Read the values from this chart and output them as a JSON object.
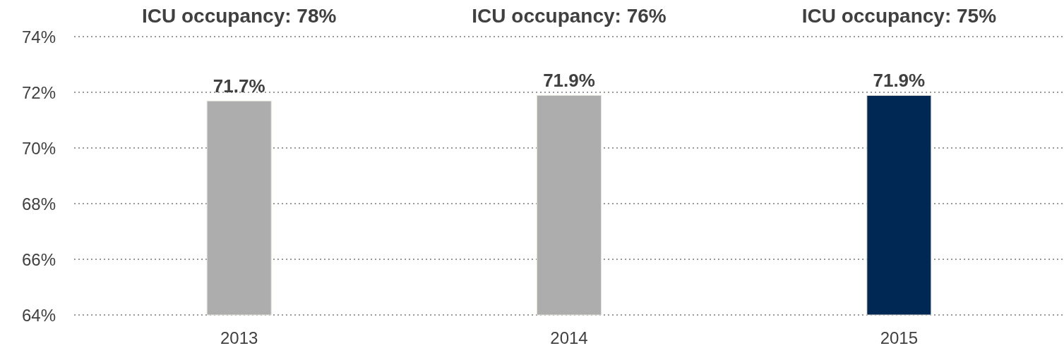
{
  "chart_data": {
    "type": "bar",
    "categories": [
      "2013",
      "2014",
      "2015"
    ],
    "values": [
      71.7,
      71.9,
      71.9
    ],
    "colors": [
      "#aeadad",
      "#aeadad",
      "#002855"
    ],
    "value_labels": [
      "71.7%",
      "71.9%",
      "71.9%"
    ],
    "ylim": [
      64,
      74
    ],
    "yticks": [
      {
        "value": 64,
        "label": "64%"
      },
      {
        "value": 66,
        "label": "66%"
      },
      {
        "value": 68,
        "label": "68%"
      },
      {
        "value": 70,
        "label": "70%"
      },
      {
        "value": 72,
        "label": "72%"
      },
      {
        "value": 74,
        "label": "74%"
      }
    ],
    "grid": "y",
    "annotations": [
      "ICU occupancy: 78%",
      "ICU occupancy: 76%",
      "ICU occupancy: 75%"
    ]
  }
}
